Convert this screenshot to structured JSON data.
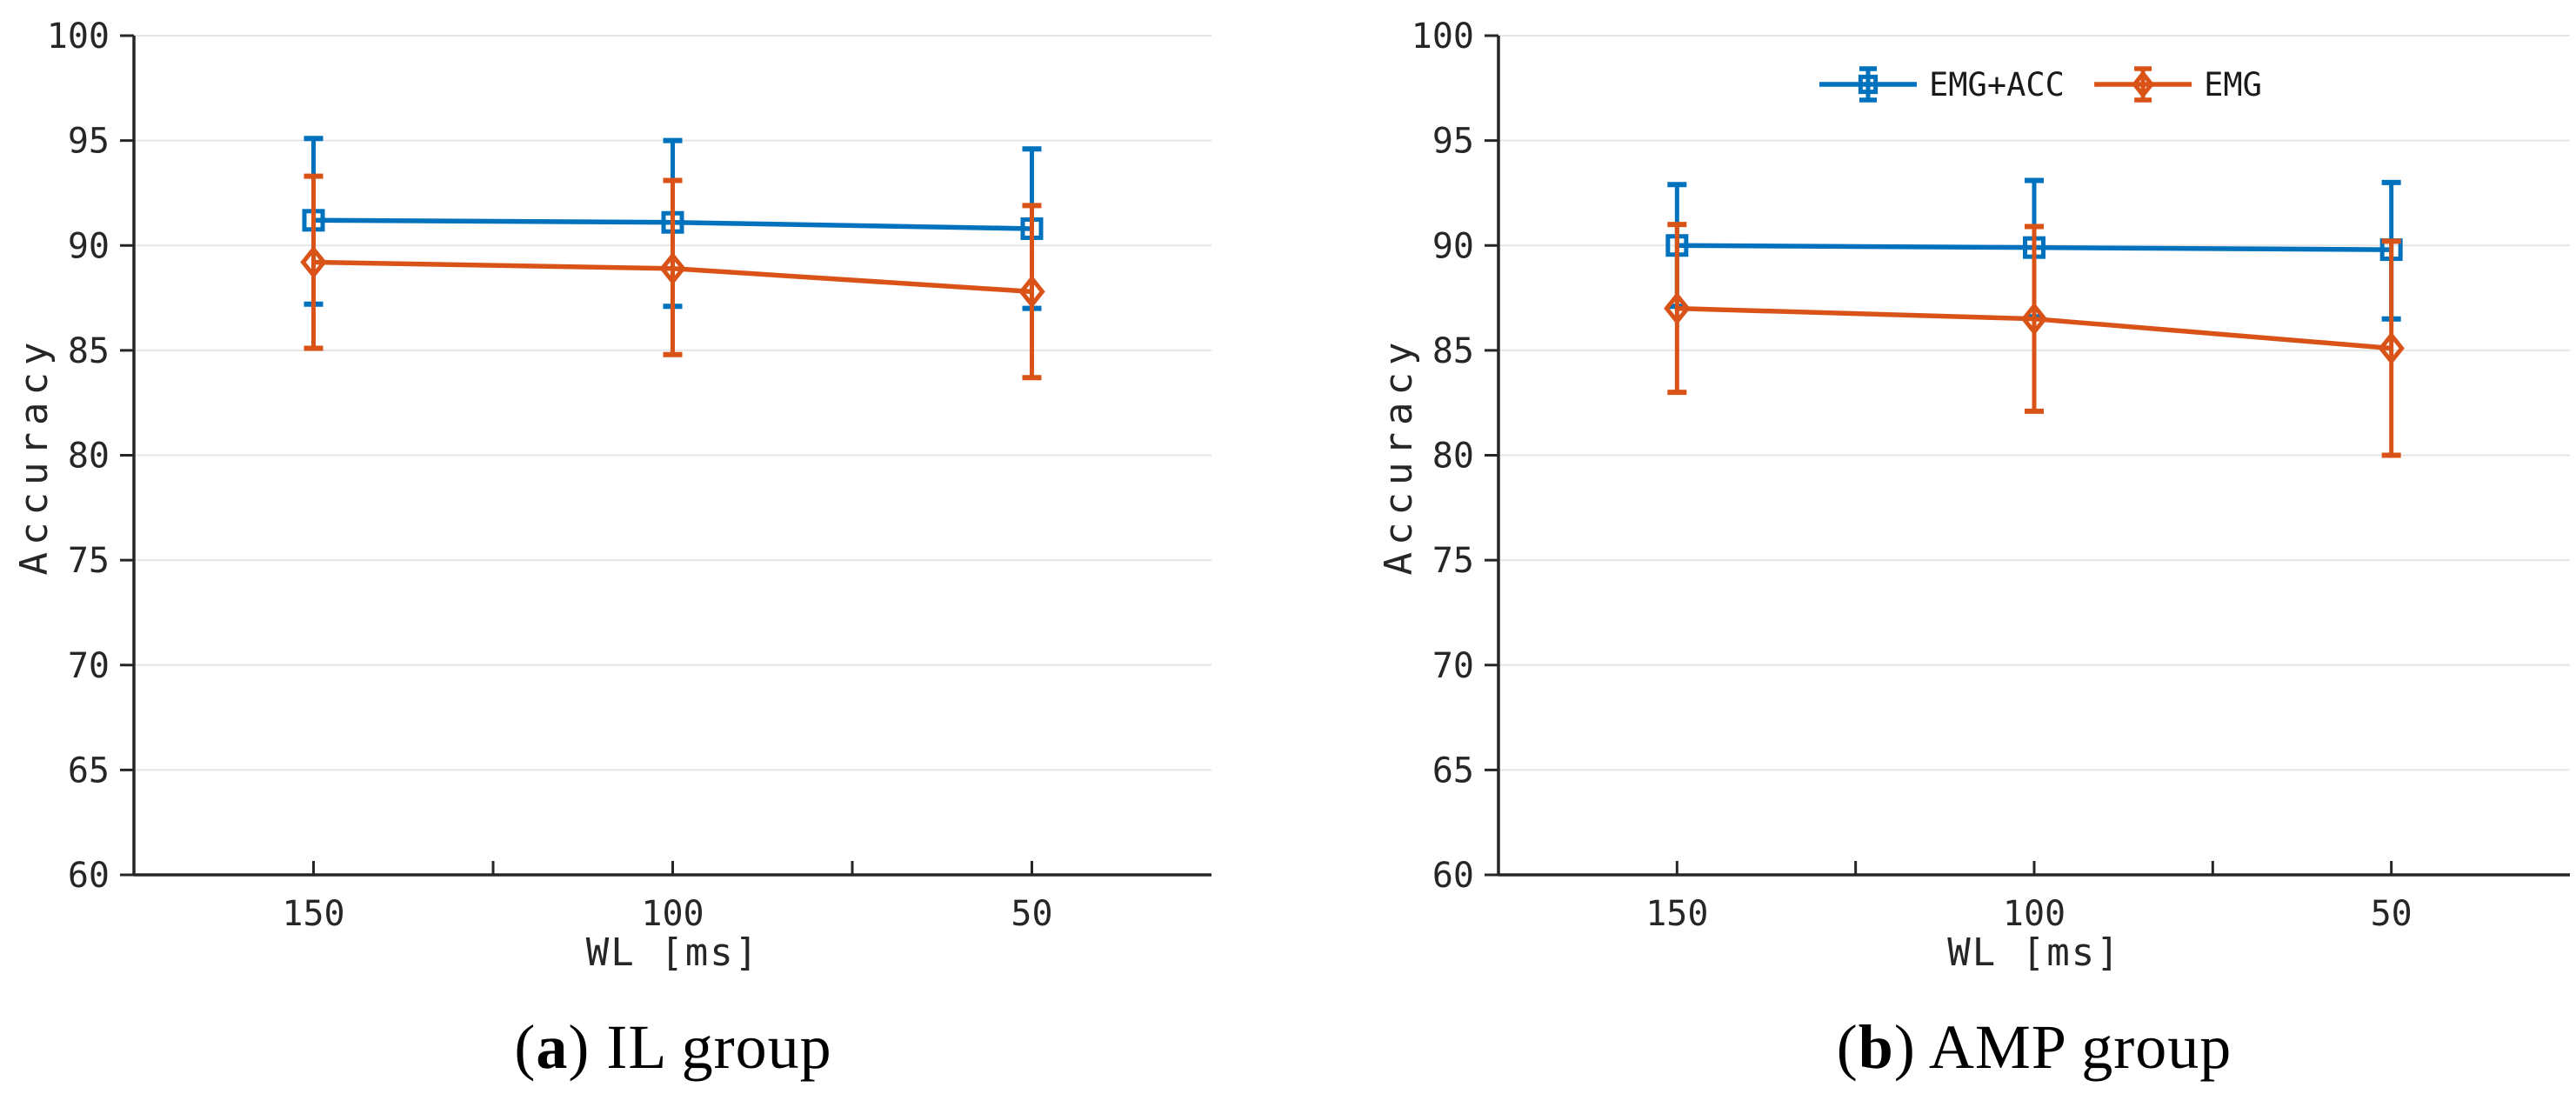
{
  "figure": {
    "background": "#ffffff",
    "axis_color": "#262626",
    "grid_color": "#e6e6e6",
    "tick_label_color": "#262626",
    "legend_text_color": "#1a1a1a",
    "legend": {
      "entries": [
        {
          "label": "EMG+ACC",
          "color": "#0072BD",
          "marker": "square"
        },
        {
          "label": "EMG",
          "color": "#D95319",
          "marker": "diamond"
        }
      ]
    }
  },
  "chart_data": [
    {
      "type": "line",
      "panel": "a",
      "caption": {
        "paren_open": "(",
        "letter": "a",
        "paren_close": ") ",
        "text": "IL group"
      },
      "xlabel": "WL [ms]",
      "ylabel": "Accuracy",
      "x": [
        150,
        100,
        50
      ],
      "x_minor_ticks": [
        125,
        75
      ],
      "x_axis_reversed": true,
      "xlim": [
        175,
        25
      ],
      "ylim": [
        60,
        100
      ],
      "yticks": [
        60,
        65,
        70,
        75,
        80,
        85,
        90,
        95,
        100
      ],
      "grid": "horizontal",
      "legend_visible": false,
      "series": [
        {
          "name": "EMG+ACC",
          "color": "#0072BD",
          "marker": "square",
          "values": [
            91.2,
            91.1,
            90.8
          ],
          "err_low": [
            87.2,
            87.1,
            87.0
          ],
          "err_high": [
            95.1,
            95.0,
            94.6
          ]
        },
        {
          "name": "EMG",
          "color": "#D95319",
          "marker": "diamond",
          "values": [
            89.2,
            88.9,
            87.8
          ],
          "err_low": [
            85.1,
            84.8,
            83.7
          ],
          "err_high": [
            93.3,
            93.1,
            91.9
          ]
        }
      ]
    },
    {
      "type": "line",
      "panel": "b",
      "caption": {
        "paren_open": "(",
        "letter": "b",
        "paren_close": ") ",
        "text": "AMP group"
      },
      "xlabel": "WL [ms]",
      "ylabel": "Accuracy",
      "x": [
        150,
        100,
        50
      ],
      "x_minor_ticks": [
        125,
        75
      ],
      "x_axis_reversed": true,
      "xlim": [
        175,
        25
      ],
      "ylim": [
        60,
        100
      ],
      "yticks": [
        60,
        65,
        70,
        75,
        80,
        85,
        90,
        95,
        100
      ],
      "grid": "horizontal",
      "legend_visible": true,
      "series": [
        {
          "name": "EMG+ACC",
          "color": "#0072BD",
          "marker": "square",
          "values": [
            90.0,
            89.9,
            89.8
          ],
          "err_low": [
            87.1,
            86.6,
            86.5
          ],
          "err_high": [
            92.9,
            93.1,
            93.0
          ]
        },
        {
          "name": "EMG",
          "color": "#D95319",
          "marker": "diamond",
          "values": [
            87.0,
            86.5,
            85.1
          ],
          "err_low": [
            83.0,
            82.1,
            80.0
          ],
          "err_high": [
            91.0,
            90.9,
            90.2
          ]
        }
      ]
    }
  ]
}
